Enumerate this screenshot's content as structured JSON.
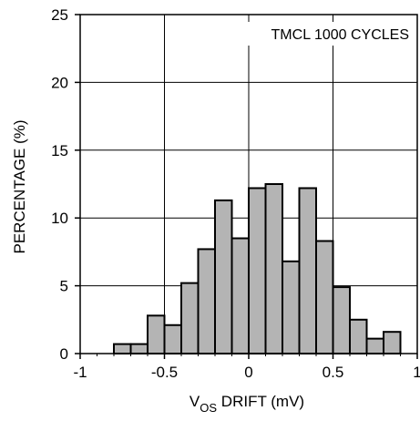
{
  "chart_data": {
    "type": "bar",
    "title": "",
    "annotation": "TMCL 1000 CYCLES",
    "xlabel": {
      "main": "V",
      "sub": "OS",
      "rest": " DRIFT (mV)"
    },
    "ylabel": "PERCENTAGE (%)",
    "xlim": [
      -1,
      1
    ],
    "ylim": [
      0,
      25
    ],
    "xticks": [
      -1,
      -0.5,
      0,
      0.5,
      1
    ],
    "xtick_labels": [
      "-1",
      "-0.5",
      "0",
      "0.5",
      "1"
    ],
    "yticks": [
      0,
      5,
      10,
      15,
      20,
      25
    ],
    "ytick_labels": [
      "0",
      "5",
      "10",
      "15",
      "20",
      "25"
    ],
    "grid": true,
    "bar_color": "#b4b4b4",
    "bin_width": 0.1,
    "bins": [
      {
        "x": -0.75,
        "value": 0.7
      },
      {
        "x": -0.65,
        "value": 0.7
      },
      {
        "x": -0.55,
        "value": 2.8
      },
      {
        "x": -0.45,
        "value": 2.1
      },
      {
        "x": -0.35,
        "value": 5.2
      },
      {
        "x": -0.25,
        "value": 7.7
      },
      {
        "x": -0.15,
        "value": 11.3
      },
      {
        "x": -0.05,
        "value": 8.5
      },
      {
        "x": 0.05,
        "value": 12.2
      },
      {
        "x": 0.15,
        "value": 12.5
      },
      {
        "x": 0.25,
        "value": 6.8
      },
      {
        "x": 0.35,
        "value": 12.2
      },
      {
        "x": 0.45,
        "value": 8.3
      },
      {
        "x": 0.55,
        "value": 4.9
      },
      {
        "x": 0.65,
        "value": 2.5
      },
      {
        "x": 0.75,
        "value": 1.1
      },
      {
        "x": 0.85,
        "value": 1.6
      }
    ]
  }
}
